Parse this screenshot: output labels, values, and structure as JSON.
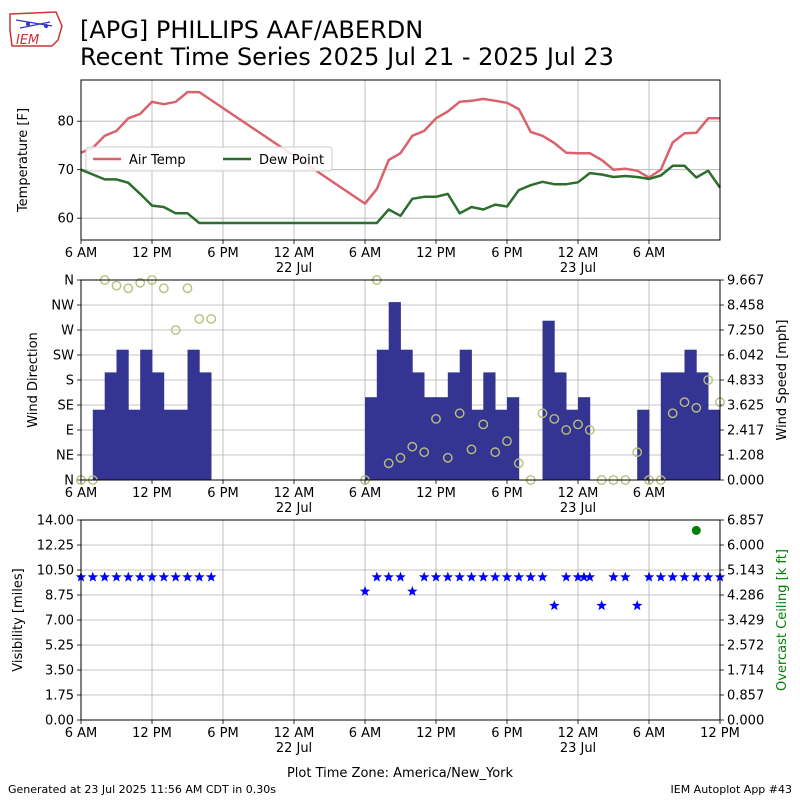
{
  "header": {
    "title_line1": "[APG] PHILLIPS AAF/ABERDN",
    "title_line2": "Recent Time Series 2025 Jul 21 - 2025 Jul 23",
    "logo_text": "IEM"
  },
  "footer": {
    "generated": "Generated at 23 Jul 2025 11:56 AM CDT in 0.30s",
    "app": "IEM Autoplot App #43"
  },
  "colors": {
    "air_temp": "#d9626c",
    "dew_point": "#2d6e2d",
    "wind_speed_bar": "#343493",
    "wind_dir_marker": "#b8bf7a",
    "visibility": "#0000ff",
    "ceiling": "#008000",
    "ceiling_axis_label": "#008000",
    "grid": "#b0b0b0"
  },
  "chart_data": [
    {
      "type": "line",
      "ylabel": "Temperature [F]",
      "ylim": [
        55.5,
        88.5
      ],
      "y_ticks": [
        60,
        70,
        80
      ],
      "x_ticks": [
        "6 AM",
        "12 PM",
        "6 PM",
        "12 AM",
        "6 AM",
        "12 PM",
        "6 PM",
        "12 AM",
        "6 AM"
      ],
      "x_date_labels": [
        "22 Jul",
        "23 Jul"
      ],
      "x_unit": "hours after 2025 Jul 21 6 AM",
      "xlim": [
        0,
        54
      ],
      "grid": true,
      "legend": "upper-left",
      "series": [
        {
          "name": "Air Temp",
          "x": [
            0,
            1,
            2,
            3,
            4,
            5,
            6,
            7,
            8,
            9,
            10,
            24,
            25,
            26,
            27,
            28,
            29,
            30,
            31,
            32,
            33,
            34,
            35,
            36,
            37,
            38,
            39,
            40,
            41,
            42,
            43,
            44,
            45,
            46,
            47,
            48,
            49,
            50,
            51,
            52,
            53,
            54
          ],
          "y": [
            73.5,
            74.5,
            77,
            78,
            80.6,
            81.5,
            84,
            83.5,
            84,
            86,
            86,
            63,
            66,
            72,
            73.4,
            77,
            78,
            80.6,
            82,
            84,
            84.2,
            84.6,
            84.2,
            83.8,
            82.5,
            77.8,
            77,
            75.5,
            73.5,
            73.4,
            73.4,
            72,
            70,
            70.2,
            69.8,
            68.4,
            70,
            75.6,
            77.5,
            77.6,
            80.6,
            80.6
          ]
        },
        {
          "name": "Dew Point",
          "x": [
            0,
            1,
            2,
            3,
            4,
            5,
            6,
            7,
            8,
            9,
            10,
            24,
            25,
            26,
            27,
            28,
            29,
            30,
            31,
            32,
            33,
            34,
            35,
            36,
            37,
            38,
            39,
            40,
            41,
            42,
            43,
            44,
            45,
            46,
            47,
            48,
            49,
            50,
            51,
            52,
            53,
            54
          ],
          "y": [
            70,
            69,
            68,
            68,
            67.3,
            65,
            62.6,
            62.3,
            61,
            61,
            59,
            59,
            59,
            61.8,
            60.5,
            64,
            64.4,
            64.4,
            65,
            61,
            62.3,
            61.8,
            62.8,
            62.4,
            65.8,
            66.8,
            67.5,
            67,
            67,
            67.4,
            69.3,
            69,
            68.5,
            68.7,
            68.5,
            68.1,
            68.8,
            70.8,
            70.8,
            68.4,
            69.8,
            66.3
          ]
        }
      ]
    },
    {
      "type": "bar",
      "ylabel": "Wind Direction",
      "y2label": "Wind Speed [mph]",
      "y_ticks": [
        "N",
        "NE",
        "E",
        "SE",
        "S",
        "SW",
        "W",
        "NW",
        "N"
      ],
      "y2_ticks": [
        "0.000",
        "1.208",
        "2.417",
        "3.625",
        "4.833",
        "6.042",
        "7.250",
        "8.458",
        "9.667"
      ],
      "ylim": [
        0,
        360
      ],
      "y2lim": [
        0,
        9.667
      ],
      "x_ticks": [
        "6 AM",
        "12 PM",
        "6 PM",
        "12 AM",
        "6 AM",
        "12 PM",
        "6 PM",
        "12 AM",
        "6 AM"
      ],
      "x_date_labels": [
        "22 Jul",
        "23 Jul"
      ],
      "x_unit": "hours after 2025 Jul 21 6 AM",
      "xlim": [
        0,
        54
      ],
      "grid": true,
      "speed_series": {
        "x": [
          1.5,
          2.5,
          3.5,
          4.5,
          5.5,
          6.5,
          7.5,
          8.5,
          9.5,
          10.5,
          24.5,
          25.5,
          26.5,
          27.5,
          28.5,
          29.5,
          30.5,
          31.5,
          32.5,
          33.5,
          34.5,
          35.5,
          36.5,
          37.5,
          38.5,
          39.5,
          40.5,
          41.5,
          42.5,
          43.5,
          44.5,
          47.5,
          49.5,
          50.5,
          51.5,
          52.5,
          53.5
        ],
        "y": [
          3.4,
          5.2,
          6.3,
          3.4,
          6.3,
          5.2,
          3.4,
          3.4,
          6.3,
          5.2,
          4.0,
          6.3,
          8.6,
          6.3,
          5.2,
          4.0,
          4.0,
          5.2,
          6.3,
          3.4,
          5.2,
          3.4,
          4.0,
          0,
          0,
          7.7,
          5.2,
          3.4,
          4.0,
          0,
          0,
          3.4,
          5.2,
          5.2,
          6.3,
          5.2,
          3.4
        ]
      },
      "direction_series": {
        "x": [
          0,
          1,
          2,
          3,
          4,
          5,
          6,
          7,
          8,
          9,
          10,
          11,
          24,
          25,
          26,
          27,
          28,
          29,
          30,
          31,
          32,
          33,
          34,
          35,
          36,
          37,
          38,
          39,
          40,
          41,
          42,
          43,
          44,
          45,
          46,
          47,
          48,
          49,
          50,
          51,
          52,
          53,
          54
        ],
        "y": [
          0,
          0,
          360,
          350,
          345,
          355,
          360,
          345,
          270,
          345,
          290,
          290,
          0,
          360,
          30,
          40,
          60,
          50,
          110,
          40,
          120,
          55,
          100,
          50,
          70,
          30,
          0,
          120,
          110,
          90,
          100,
          90,
          0,
          0,
          0,
          50,
          0,
          0,
          120,
          140,
          130,
          180,
          140
        ]
      }
    },
    {
      "type": "scatter",
      "ylabel": "Visibility [miles]",
      "y2label": "Overcast Ceiling [k ft]",
      "y_ticks": [
        "0.00",
        "1.75",
        "3.50",
        "5.25",
        "7.00",
        "8.75",
        "10.50",
        "12.25",
        "14.00"
      ],
      "y2_ticks": [
        "0.000",
        "0.857",
        "1.714",
        "2.572",
        "3.429",
        "4.286",
        "5.143",
        "6.000",
        "6.857"
      ],
      "ylim": [
        0,
        14
      ],
      "y2lim": [
        0,
        6.857
      ],
      "x_ticks": [
        "6 AM",
        "12 PM",
        "6 PM",
        "12 AM",
        "6 AM",
        "12 PM",
        "6 PM",
        "12 AM",
        "6 AM",
        "12 PM"
      ],
      "x_date_labels": [
        "22 Jul",
        "23 Jul"
      ],
      "x_unit": "hours after 2025 Jul 21 6 AM",
      "xlim": [
        0,
        54
      ],
      "xlabel": "Plot Time Zone: America/New_York",
      "grid": true,
      "visibility_series": {
        "x": [
          0,
          1,
          2,
          3,
          4,
          5,
          6,
          7,
          8,
          9,
          10,
          11,
          24,
          25,
          26,
          27,
          28,
          29,
          30,
          31,
          32,
          33,
          34,
          35,
          36,
          37,
          38,
          39,
          40,
          41,
          42,
          42.5,
          43,
          44,
          45,
          46,
          47,
          48,
          49,
          50,
          51,
          52,
          53,
          54
        ],
        "y": [
          10,
          10,
          10,
          10,
          10,
          10,
          10,
          10,
          10,
          10,
          10,
          10,
          9,
          10,
          10,
          10,
          9,
          10,
          10,
          10,
          10,
          10,
          10,
          10,
          10,
          10,
          10,
          10,
          8,
          10,
          10,
          10,
          10,
          8,
          10,
          10,
          8,
          10,
          10,
          10,
          10,
          10,
          10,
          10
        ]
      },
      "ceiling_series": {
        "x": [
          52
        ],
        "y": [
          6.5
        ]
      }
    }
  ]
}
